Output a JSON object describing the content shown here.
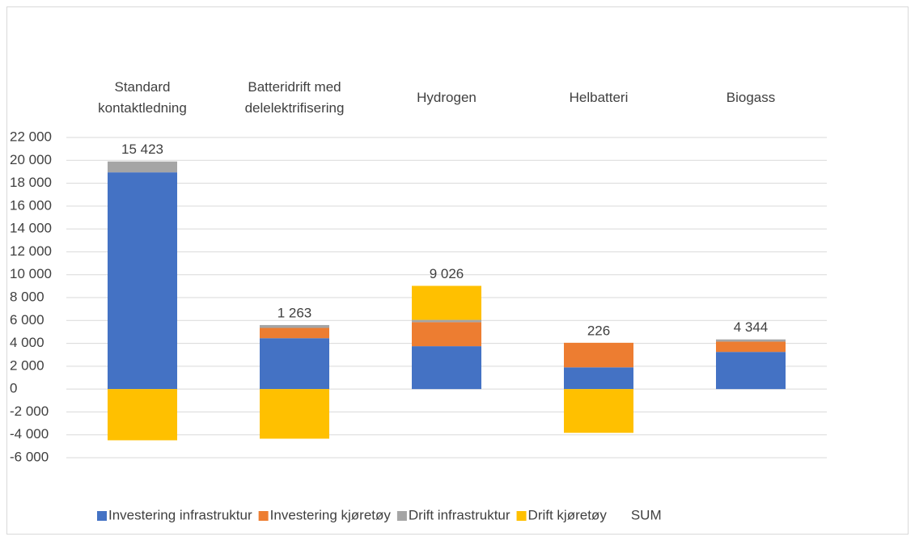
{
  "chart_data": {
    "type": "bar",
    "stacked": true,
    "categories": [
      "Standard\nkontaktledning",
      "Batteridrift med\ndelelektrifisering",
      "Hydrogen",
      "Helbatteri",
      "Biogass"
    ],
    "series": [
      {
        "name": "Investering infrastruktur",
        "color": "#4472c4",
        "values": [
          18950,
          4450,
          3750,
          1900,
          3250
        ]
      },
      {
        "name": "Investering kjøretøy",
        "color": "#ed7d31",
        "values": [
          0,
          900,
          2100,
          2150,
          900
        ]
      },
      {
        "name": "Drift infrastruktur",
        "color": "#a5a5a5",
        "values": [
          950,
          250,
          200,
          0,
          194
        ]
      },
      {
        "name": "Drift kjøretøy",
        "color": "#ffc000",
        "values": [
          -4477,
          -4337,
          2976,
          -3824,
          0
        ]
      },
      {
        "name": "SUM",
        "values": [
          15423,
          1263,
          9026,
          226,
          4344
        ],
        "value_labels": [
          "15 423",
          "1 263",
          "9 026",
          "226",
          "4 344"
        ]
      }
    ],
    "ylim": [
      -6000,
      22000
    ],
    "yticks": [
      {
        "value": -6000,
        "label": "-6 000"
      },
      {
        "value": -4000,
        "label": "-4 000"
      },
      {
        "value": -2000,
        "label": "-2 000"
      },
      0,
      {
        "value": 2000,
        "label": "2 000"
      },
      {
        "value": 4000,
        "label": "4 000"
      },
      {
        "value": 6000,
        "label": "6 000"
      },
      {
        "value": 8000,
        "label": "8 000"
      },
      {
        "value": 10000,
        "label": "10 000"
      },
      {
        "value": 12000,
        "label": "12 000"
      },
      {
        "value": 14000,
        "label": "14 000"
      },
      {
        "value": 16000,
        "label": "16 000"
      },
      {
        "value": 18000,
        "label": "18 000"
      },
      {
        "value": 20000,
        "label": "20 000"
      },
      {
        "value": 22000,
        "label": "22 000"
      }
    ],
    "grid": true,
    "legend": "bottom"
  }
}
